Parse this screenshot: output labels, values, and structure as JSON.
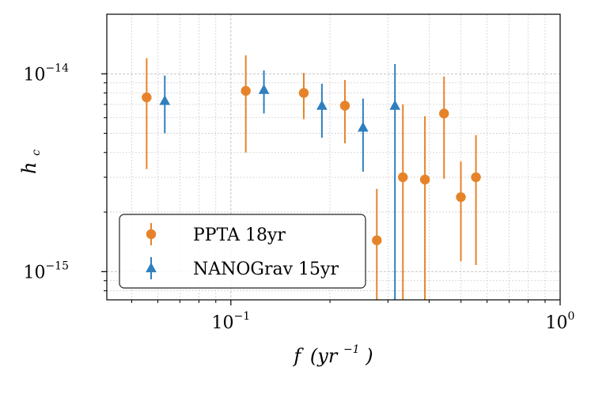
{
  "chart_data": {
    "type": "scatter",
    "x_scale": "log",
    "y_scale": "log",
    "xlim": [
      0.042,
      1.0
    ],
    "ylim": [
      7.2e-16,
      2e-14
    ],
    "grid": true,
    "legend_placement": "lower-left",
    "xlabel_main": "f",
    "xlabel_unit": "(yr",
    "xlabel_exp": "−1",
    "xlabel_close": ")",
    "ylabel_main": "h",
    "ylabel_sub": "c",
    "x_ticks": [
      {
        "value": 0.1,
        "base": "10",
        "exp": "−1"
      },
      {
        "value": 1.0,
        "base": "10",
        "exp": "0"
      }
    ],
    "y_ticks": [
      {
        "value": 1e-14,
        "base": "10",
        "exp": "−14"
      },
      {
        "value": 1e-15,
        "base": "10",
        "exp": "−15"
      }
    ],
    "series": [
      {
        "name": "PPTA 18yr",
        "color": "#e6832a",
        "marker": "circle",
        "points": [
          {
            "x": 0.0555,
            "y": 7.6e-15,
            "lo": 3.3e-15,
            "hi": 1.2e-14
          },
          {
            "x": 0.111,
            "y": 8.2e-15,
            "lo": 4e-15,
            "hi": 1.24e-14
          },
          {
            "x": 0.1665,
            "y": 8e-15,
            "lo": 5.9e-15,
            "hi": 1.01e-14
          },
          {
            "x": 0.222,
            "y": 6.9e-15,
            "lo": 4.45e-15,
            "hi": 9.3e-15
          },
          {
            "x": 0.2775,
            "y": 1.44e-15,
            "lo": 7.2e-16,
            "hi": 2.62e-15
          },
          {
            "x": 0.333,
            "y": 3e-15,
            "lo": 7.2e-16,
            "hi": 7e-15
          },
          {
            "x": 0.3885,
            "y": 2.92e-15,
            "lo": 7.2e-16,
            "hi": 6.1e-15
          },
          {
            "x": 0.444,
            "y": 6.3e-15,
            "lo": 2.95e-15,
            "hi": 9.7e-15
          },
          {
            "x": 0.4995,
            "y": 2.38e-15,
            "lo": 1.13e-15,
            "hi": 3.6e-15
          },
          {
            "x": 0.555,
            "y": 3e-15,
            "lo": 1.08e-15,
            "hi": 4.9e-15
          }
        ]
      },
      {
        "name": "NANOGrav 15yr",
        "color": "#2f7fbf",
        "marker": "triangle",
        "points": [
          {
            "x": 0.063,
            "y": 7.3e-15,
            "lo": 5e-15,
            "hi": 9.8e-15
          },
          {
            "x": 0.126,
            "y": 8.3e-15,
            "lo": 6.3e-15,
            "hi": 1.04e-14
          },
          {
            "x": 0.189,
            "y": 6.9e-15,
            "lo": 4.75e-15,
            "hi": 8.9e-15
          },
          {
            "x": 0.252,
            "y": 5.35e-15,
            "lo": 3.2e-15,
            "hi": 7.5e-15
          },
          {
            "x": 0.315,
            "y": 6.9e-15,
            "lo": 7.2e-16,
            "hi": 1.12e-14
          }
        ]
      }
    ]
  }
}
